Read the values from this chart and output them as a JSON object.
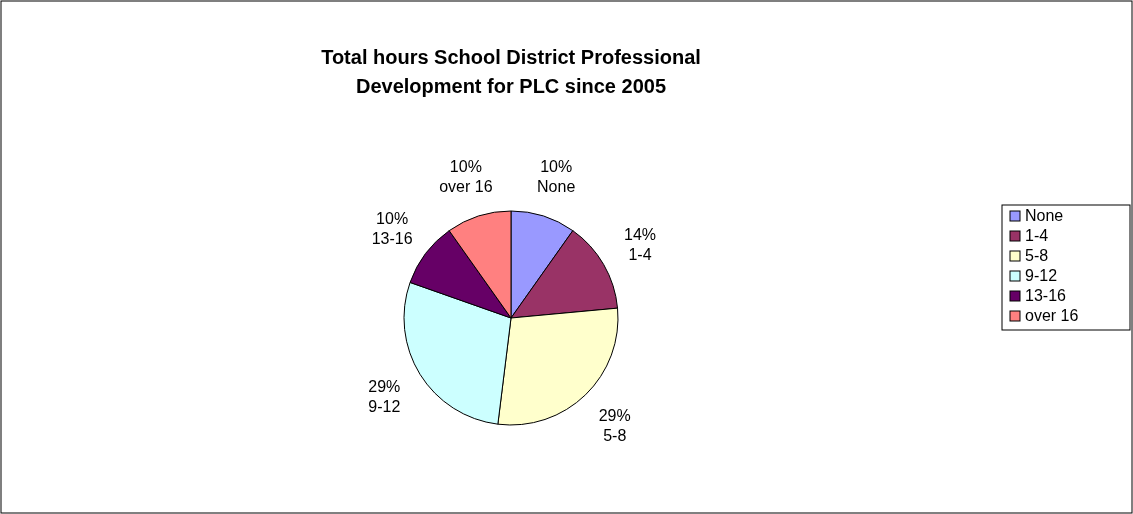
{
  "chart_data": {
    "type": "pie",
    "title": "Total hours School District Professional Development for PLC since 2005",
    "categories": [
      "None",
      "1-4",
      "5-8",
      "9-12",
      "13-16",
      "over 16"
    ],
    "values": [
      10,
      14,
      29,
      29,
      10,
      10
    ],
    "value_labels": [
      "10%",
      "14%",
      "29%",
      "29%",
      "10%",
      "10%"
    ],
    "colors": [
      "#9999ff",
      "#993366",
      "#ffffcc",
      "#ccffff",
      "#660066",
      "#ff8080"
    ],
    "legend": "right"
  }
}
